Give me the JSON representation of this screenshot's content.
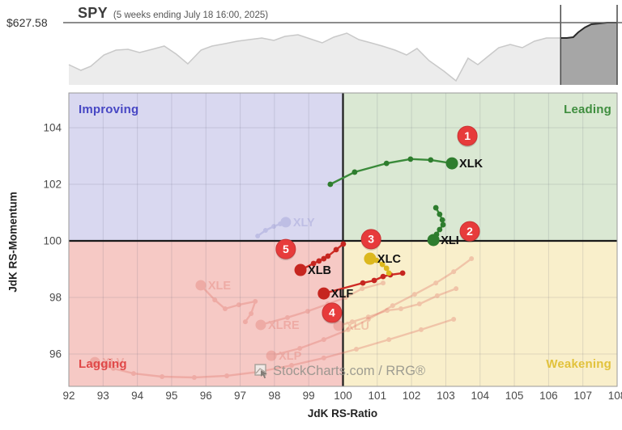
{
  "header": {
    "price_label": "$627.58",
    "symbol": "SPY",
    "subtitle": "(5 weeks ending July 18 16:00, 2025)"
  },
  "axes": {
    "x_title": "JdK RS-Ratio",
    "y_title": "JdK RS-Momentum"
  },
  "quadrants": {
    "improving": {
      "label": "Improving",
      "color": "#4747c4",
      "bg": "#d9d8f0"
    },
    "leading": {
      "label": "Leading",
      "color": "#3f8e3f",
      "bg": "#dae8d3"
    },
    "lagging": {
      "label": "Lagging",
      "color": "#e04848",
      "bg": "#f6c9c5"
    },
    "weakening": {
      "label": "Weakening",
      "color": "#e2c23c",
      "bg": "#f9efcb"
    }
  },
  "watermark": {
    "text": "StockCharts.com / RRG®",
    "icon": "chart-cursor-icon"
  },
  "badge_style": {
    "fill": "#e73b3b",
    "stroke": "#c93434",
    "text_color": "#ffffff"
  },
  "chart_data": [
    {
      "name": "rrg",
      "type": "scatter",
      "variant": "relative-rotation-graph",
      "x_label": "JdK RS-Ratio",
      "y_label": "JdK RS-Momentum",
      "x_ticks": [
        92,
        93,
        94,
        95,
        96,
        97,
        98,
        99,
        100,
        101,
        102,
        103,
        104,
        105,
        106,
        107,
        108
      ],
      "y_ticks": [
        96,
        98,
        100,
        102,
        104
      ],
      "x_range": [
        92,
        108
      ],
      "y_range": [
        94.86,
        105.23
      ],
      "center": [
        100,
        100
      ],
      "grid": true,
      "series": [
        {
          "symbol": "XLY",
          "faded": true,
          "color": "#8f8fd0",
          "points": [
            [
              97.51,
              100.17
            ],
            [
              97.74,
              100.37
            ],
            [
              97.98,
              100.51
            ],
            [
              98.17,
              100.6
            ],
            [
              98.33,
              100.66
            ]
          ]
        },
        {
          "symbol": "XLE",
          "faded": true,
          "color": "#e2766a",
          "points": [
            [
              97.15,
              97.14
            ],
            [
              97.32,
              97.43
            ],
            [
              97.44,
              97.86
            ],
            [
              96.96,
              97.74
            ],
            [
              96.56,
              97.6
            ],
            [
              96.26,
              97.91
            ],
            [
              95.85,
              98.43
            ]
          ]
        },
        {
          "symbol": "XLRE",
          "faded": true,
          "color": "#e2766a",
          "points": [
            [
              101.17,
              98.51
            ],
            [
              100.56,
              98.31
            ],
            [
              100.08,
              98.0
            ],
            [
              99.56,
              97.77
            ],
            [
              98.97,
              97.51
            ],
            [
              98.38,
              97.29
            ],
            [
              97.6,
              97.03
            ]
          ]
        },
        {
          "symbol": "XLP",
          "faded": true,
          "color": "#e2766a",
          "points": [
            [
              103.75,
              99.37
            ],
            [
              103.23,
              98.91
            ],
            [
              102.71,
              98.51
            ],
            [
              102.09,
              98.11
            ],
            [
              101.45,
              97.71
            ],
            [
              100.74,
              97.23
            ],
            [
              100.15,
              96.86
            ],
            [
              99.44,
              96.51
            ],
            [
              98.74,
              96.2
            ],
            [
              97.91,
              95.94
            ]
          ]
        },
        {
          "symbol": "XLU",
          "faded": true,
          "color": "#e2766a",
          "points": [
            [
              103.3,
              98.31
            ],
            [
              102.75,
              98.06
            ],
            [
              102.23,
              97.77
            ],
            [
              101.69,
              97.6
            ],
            [
              101.29,
              97.54
            ],
            [
              100.74,
              97.31
            ],
            [
              100.27,
              97.14
            ],
            [
              99.87,
              97.0
            ]
          ]
        },
        {
          "symbol": "XLV",
          "faded": true,
          "color": "#e2766a",
          "points": [
            [
              103.23,
              97.23
            ],
            [
              102.28,
              96.86
            ],
            [
              101.34,
              96.51
            ],
            [
              100.39,
              96.17
            ],
            [
              99.44,
              95.86
            ],
            [
              98.5,
              95.6
            ],
            [
              97.55,
              95.37
            ],
            [
              96.61,
              95.23
            ],
            [
              95.66,
              95.17
            ],
            [
              94.72,
              95.2
            ],
            [
              93.89,
              95.31
            ],
            [
              93.3,
              95.49
            ],
            [
              92.76,
              95.71
            ]
          ]
        },
        {
          "symbol": "XLK",
          "faded": false,
          "color": "#3a8a3a",
          "dot_color": "#2e7d2e",
          "label_color": "#111111",
          "points": [
            [
              99.63,
              102.0
            ],
            [
              100.34,
              102.43
            ],
            [
              101.27,
              102.74
            ],
            [
              101.97,
              102.89
            ],
            [
              102.56,
              102.86
            ],
            [
              103.18,
              102.74
            ]
          ]
        },
        {
          "symbol": "XLI",
          "faded": false,
          "color": "#3a8a3a",
          "dot_color": "#2e7d2e",
          "label_color": "#111111",
          "points": [
            [
              102.71,
              101.17
            ],
            [
              102.82,
              100.94
            ],
            [
              102.9,
              100.74
            ],
            [
              102.92,
              100.57
            ],
            [
              102.82,
              100.4
            ],
            [
              102.73,
              100.23
            ],
            [
              102.64,
              100.03
            ]
          ]
        },
        {
          "symbol": "XLB",
          "faded": false,
          "color": "#cf2b24",
          "dot_color": "#c62620",
          "label_color": "#111111",
          "points": [
            [
              100.01,
              99.89
            ],
            [
              99.8,
              99.69
            ],
            [
              99.56,
              99.46
            ],
            [
              99.44,
              99.37
            ],
            [
              99.3,
              99.29
            ],
            [
              99.14,
              99.2
            ],
            [
              98.76,
              98.97
            ]
          ]
        },
        {
          "symbol": "XLF",
          "faded": false,
          "color": "#cf2b24",
          "dot_color": "#c62620",
          "label_color": "#111111",
          "points": [
            [
              101.74,
              98.86
            ],
            [
              101.38,
              98.8
            ],
            [
              101.17,
              98.74
            ],
            [
              100.91,
              98.6
            ],
            [
              100.58,
              98.51
            ],
            [
              99.44,
              98.14
            ]
          ]
        },
        {
          "symbol": "XLC",
          "faded": false,
          "color": "#e4c428",
          "dot_color": "#dcb81e",
          "label_color": "#111111",
          "points": [
            [
              101.34,
              98.86
            ],
            [
              101.27,
              99.03
            ],
            [
              101.15,
              99.17
            ],
            [
              100.98,
              99.31
            ],
            [
              100.79,
              99.37
            ]
          ]
        }
      ],
      "badges": [
        {
          "label": "1",
          "x": 103.63,
          "y": 103.71
        },
        {
          "label": "2",
          "x": 103.7,
          "y": 100.34
        },
        {
          "label": "3",
          "x": 100.82,
          "y": 100.06
        },
        {
          "label": "4",
          "x": 99.68,
          "y": 97.46
        },
        {
          "label": "5",
          "x": 98.33,
          "y": 99.71
        }
      ]
    },
    {
      "name": "spy_price",
      "type": "area",
      "symbol": "SPY",
      "price_level_label": "$627.58",
      "highlight_window_norm": [
        0.897,
        1.0
      ],
      "points_norm": [
        [
          0.0,
          0.675
        ],
        [
          0.022,
          0.766
        ],
        [
          0.04,
          0.701
        ],
        [
          0.064,
          0.519
        ],
        [
          0.086,
          0.442
        ],
        [
          0.108,
          0.429
        ],
        [
          0.129,
          0.481
        ],
        [
          0.152,
          0.429
        ],
        [
          0.174,
          0.377
        ],
        [
          0.196,
          0.506
        ],
        [
          0.217,
          0.662
        ],
        [
          0.241,
          0.442
        ],
        [
          0.261,
          0.377
        ],
        [
          0.285,
          0.338
        ],
        [
          0.307,
          0.299
        ],
        [
          0.329,
          0.273
        ],
        [
          0.352,
          0.247
        ],
        [
          0.374,
          0.286
        ],
        [
          0.394,
          0.221
        ],
        [
          0.418,
          0.195
        ],
        [
          0.44,
          0.26
        ],
        [
          0.462,
          0.325
        ],
        [
          0.483,
          0.234
        ],
        [
          0.507,
          0.169
        ],
        [
          0.529,
          0.273
        ],
        [
          0.551,
          0.325
        ],
        [
          0.572,
          0.377
        ],
        [
          0.595,
          0.442
        ],
        [
          0.616,
          0.519
        ],
        [
          0.635,
          0.416
        ],
        [
          0.657,
          0.61
        ],
        [
          0.684,
          0.779
        ],
        [
          0.706,
          0.935
        ],
        [
          0.728,
          0.571
        ],
        [
          0.746,
          0.675
        ],
        [
          0.764,
          0.545
        ],
        [
          0.784,
          0.403
        ],
        [
          0.805,
          0.351
        ],
        [
          0.827,
          0.403
        ],
        [
          0.849,
          0.299
        ],
        [
          0.871,
          0.247
        ],
        [
          0.89,
          0.247
        ],
        [
          0.897,
          0.247
        ],
        [
          0.908,
          0.247
        ],
        [
          0.92,
          0.234
        ],
        [
          0.929,
          0.156
        ],
        [
          0.941,
          0.078
        ],
        [
          0.953,
          0.026
        ],
        [
          0.968,
          0.013
        ],
        [
          0.982,
          0.0
        ],
        [
          1.0,
          0.0
        ]
      ]
    }
  ]
}
